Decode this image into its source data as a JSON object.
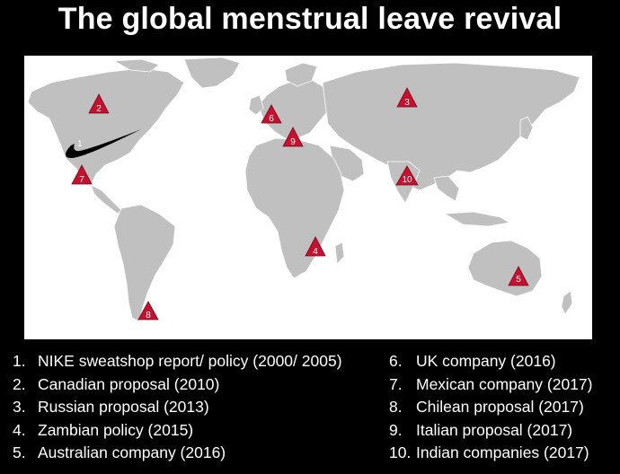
{
  "title": "The global menstrual leave revival",
  "colors": {
    "background": "#000000",
    "land": "#c0c0c0",
    "ocean": "#ffffff",
    "marker": "#c8102e",
    "swoosh": "#000000"
  },
  "markers": [
    {
      "id": "2",
      "label": "2"
    },
    {
      "id": "3",
      "label": "3"
    },
    {
      "id": "6",
      "label": "6"
    },
    {
      "id": "9",
      "label": "9"
    },
    {
      "id": "7",
      "label": "7"
    },
    {
      "id": "10",
      "label": "10"
    },
    {
      "id": "4",
      "label": "4"
    },
    {
      "id": "5",
      "label": "5"
    },
    {
      "id": "8",
      "label": "8"
    }
  ],
  "swoosh_label": "1",
  "legend": [
    {
      "num": "1.",
      "text": "NIKE sweatshop report/ policy (2000/ 2005)"
    },
    {
      "num": "2.",
      "text": "Canadian proposal (2010)"
    },
    {
      "num": "3.",
      "text": "Russian proposal (2013)"
    },
    {
      "num": "4.",
      "text": "Zambian policy (2015)"
    },
    {
      "num": "5.",
      "text": "Australian company (2016)"
    },
    {
      "num": "6.",
      "text": "UK company (2016)"
    },
    {
      "num": "7.",
      "text": "Mexican company (2017)"
    },
    {
      "num": "8.",
      "text": "Chilean proposal (2017)"
    },
    {
      "num": "9.",
      "text": "Italian proposal (2017)"
    },
    {
      "num": "10.",
      "text": "Indian companies (2017)"
    }
  ]
}
